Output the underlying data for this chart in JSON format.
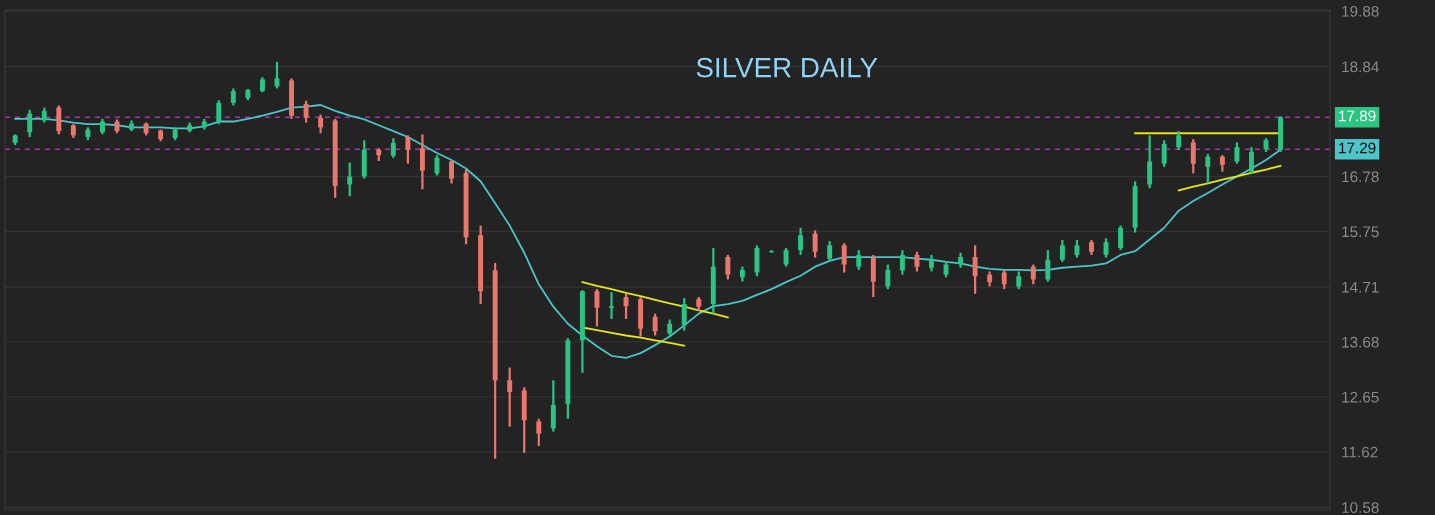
{
  "chart_data": {
    "type": "candlestick",
    "title": "SILVER DAILY",
    "categories": [
      null,
      null,
      null,
      null,
      null,
      null,
      null,
      null,
      null,
      null,
      null,
      null,
      null,
      null,
      null,
      null,
      null,
      null,
      null,
      null,
      null,
      null,
      null,
      null,
      null,
      null,
      null,
      null,
      null,
      null,
      null,
      null,
      null,
      null,
      null,
      null,
      null,
      null,
      null,
      null,
      null,
      null,
      null,
      null,
      null,
      null,
      null,
      null,
      null,
      null,
      null,
      null,
      null,
      null,
      null,
      null,
      null,
      null,
      null,
      null,
      null,
      null,
      null,
      null,
      null,
      null,
      null,
      null,
      null,
      null,
      null,
      null,
      null,
      null,
      null,
      null,
      null,
      null,
      null,
      null,
      null,
      null,
      null,
      null,
      null,
      null,
      null,
      null
    ],
    "ohlc": [
      [
        17.41,
        17.57,
        17.37,
        17.55
      ],
      [
        17.61,
        18.03,
        17.52,
        17.96
      ],
      [
        17.83,
        18.07,
        17.79,
        18.01
      ],
      [
        18.07,
        18.11,
        17.57,
        17.63
      ],
      [
        17.74,
        17.76,
        17.5,
        17.55
      ],
      [
        17.52,
        17.7,
        17.46,
        17.66
      ],
      [
        17.61,
        17.86,
        17.57,
        17.81
      ],
      [
        17.81,
        17.85,
        17.59,
        17.63
      ],
      [
        17.66,
        17.83,
        17.63,
        17.77
      ],
      [
        17.77,
        17.79,
        17.55,
        17.59
      ],
      [
        17.64,
        17.66,
        17.44,
        17.48
      ],
      [
        17.5,
        17.7,
        17.46,
        17.66
      ],
      [
        17.64,
        17.79,
        17.61,
        17.74
      ],
      [
        17.7,
        17.86,
        17.66,
        17.81
      ],
      [
        17.81,
        18.21,
        17.76,
        18.16
      ],
      [
        18.16,
        18.43,
        18.11,
        18.38
      ],
      [
        18.25,
        18.42,
        18.21,
        18.4
      ],
      [
        18.38,
        18.64,
        18.36,
        18.6
      ],
      [
        18.47,
        18.93,
        18.43,
        18.62
      ],
      [
        18.58,
        18.62,
        17.86,
        17.92
      ],
      [
        18.14,
        18.2,
        17.79,
        17.88
      ],
      [
        17.88,
        17.94,
        17.59,
        17.7
      ],
      [
        17.83,
        17.86,
        16.38,
        16.6
      ],
      [
        16.63,
        17.04,
        16.41,
        16.78
      ],
      [
        16.78,
        17.46,
        16.74,
        17.28
      ],
      [
        17.28,
        17.31,
        17.07,
        17.18
      ],
      [
        17.17,
        17.5,
        17.13,
        17.41
      ],
      [
        17.52,
        17.55,
        17.02,
        17.28
      ],
      [
        17.31,
        17.57,
        16.54,
        16.89
      ],
      [
        16.84,
        17.18,
        16.8,
        17.13
      ],
      [
        17.06,
        17.09,
        16.65,
        16.74
      ],
      [
        16.85,
        16.91,
        15.51,
        15.64
      ],
      [
        15.68,
        15.86,
        14.39,
        14.63
      ],
      [
        15.02,
        15.16,
        11.49,
        12.96
      ],
      [
        12.96,
        13.2,
        12.09,
        12.74
      ],
      [
        12.77,
        12.83,
        11.6,
        12.21
      ],
      [
        12.19,
        12.24,
        11.73,
        11.96
      ],
      [
        12.06,
        12.96,
        12.0,
        12.5
      ],
      [
        12.52,
        13.75,
        12.24,
        13.71
      ],
      [
        13.71,
        14.65,
        13.1,
        14.63
      ],
      [
        14.63,
        14.67,
        13.97,
        14.32
      ],
      [
        14.32,
        14.61,
        14.11,
        14.35
      ],
      [
        14.52,
        14.58,
        14.11,
        14.35
      ],
      [
        14.48,
        14.52,
        13.78,
        13.93
      ],
      [
        14.15,
        14.21,
        13.8,
        13.88
      ],
      [
        13.84,
        14.1,
        13.8,
        14.02
      ],
      [
        13.99,
        14.5,
        13.89,
        14.39
      ],
      [
        14.48,
        14.52,
        14.26,
        14.34
      ],
      [
        14.39,
        15.44,
        14.21,
        15.09
      ],
      [
        15.27,
        15.31,
        14.85,
        14.94
      ],
      [
        14.89,
        15.09,
        14.81,
        15.03
      ],
      [
        14.98,
        15.49,
        14.91,
        15.44
      ],
      [
        15.36,
        15.4,
        15.35,
        15.38
      ],
      [
        15.13,
        15.44,
        15.09,
        15.4
      ],
      [
        15.4,
        15.82,
        15.31,
        15.68
      ],
      [
        15.71,
        15.77,
        15.26,
        15.37
      ],
      [
        15.24,
        15.57,
        15.2,
        15.49
      ],
      [
        15.49,
        15.53,
        14.98,
        15.13
      ],
      [
        15.09,
        15.4,
        15.03,
        15.31
      ],
      [
        15.26,
        15.31,
        14.52,
        14.81
      ],
      [
        14.72,
        15.13,
        14.67,
        15.03
      ],
      [
        15.02,
        15.4,
        14.94,
        15.31
      ],
      [
        15.31,
        15.37,
        15.0,
        15.09
      ],
      [
        15.07,
        15.31,
        15.0,
        15.22
      ],
      [
        14.94,
        15.18,
        14.89,
        15.13
      ],
      [
        15.13,
        15.35,
        15.07,
        15.27
      ],
      [
        15.27,
        15.49,
        14.58,
        14.91
      ],
      [
        14.94,
        15.0,
        14.72,
        14.8
      ],
      [
        14.98,
        15.03,
        14.67,
        14.76
      ],
      [
        14.72,
        15.0,
        14.67,
        14.91
      ],
      [
        15.09,
        15.13,
        14.76,
        14.85
      ],
      [
        14.85,
        15.4,
        14.81,
        15.22
      ],
      [
        15.22,
        15.59,
        15.18,
        15.49
      ],
      [
        15.31,
        15.59,
        15.26,
        15.49
      ],
      [
        15.55,
        15.59,
        15.31,
        15.37
      ],
      [
        15.31,
        15.62,
        15.26,
        15.55
      ],
      [
        15.44,
        15.86,
        15.4,
        15.82
      ],
      [
        15.82,
        16.69,
        15.73,
        16.6
      ],
      [
        16.63,
        17.55,
        16.56,
        17.06
      ],
      [
        17.02,
        17.46,
        16.96,
        17.39
      ],
      [
        17.33,
        17.63,
        17.28,
        17.55
      ],
      [
        17.42,
        17.48,
        16.84,
        17.02
      ],
      [
        16.96,
        17.2,
        16.65,
        17.15
      ],
      [
        17.15,
        17.18,
        16.87,
        17.0
      ],
      [
        17.06,
        17.42,
        17.02,
        17.33
      ],
      [
        16.87,
        17.33,
        16.84,
        17.24
      ],
      [
        17.29,
        17.5,
        17.24,
        17.46
      ],
      [
        17.28,
        17.91,
        17.24,
        17.89
      ]
    ],
    "colors": [
      "#2bc483",
      "#2bc483",
      "#2bc483",
      "#e9776c",
      "#e9776c",
      "#2bc483",
      "#2bc483",
      "#e9776c",
      "#2bc483",
      "#e9776c",
      "#e9776c",
      "#2bc483",
      "#2bc483",
      "#2bc483",
      "#2bc483",
      "#2bc483",
      "#2bc483",
      "#2bc483",
      "#2bc483",
      "#e9776c",
      "#e9776c",
      "#e9776c",
      "#e9776c",
      "#2bc483",
      "#2bc483",
      "#e9776c",
      "#2bc483",
      "#e9776c",
      "#e9776c",
      "#2bc483",
      "#e9776c",
      "#e9776c",
      "#e9776c",
      "#e9776c",
      "#e9776c",
      "#e9776c",
      "#e9776c",
      "#2bc483",
      "#2bc483",
      "#2bc483",
      "#e9776c",
      "#2bc483",
      "#e9776c",
      "#e9776c",
      "#e9776c",
      "#2bc483",
      "#2bc483",
      "#e9776c",
      "#2bc483",
      "#e9776c",
      "#2bc483",
      "#2bc483",
      "#2bc483",
      "#2bc483",
      "#2bc483",
      "#e9776c",
      "#2bc483",
      "#e9776c",
      "#2bc483",
      "#e9776c",
      "#2bc483",
      "#2bc483",
      "#e9776c",
      "#2bc483",
      "#2bc483",
      "#2bc483",
      "#e9776c",
      "#e9776c",
      "#e9776c",
      "#2bc483",
      "#e9776c",
      "#2bc483",
      "#2bc483",
      "#2bc483",
      "#e9776c",
      "#2bc483",
      "#2bc483",
      "#2bc483",
      "#2bc483",
      "#2bc483",
      "#2bc483",
      "#e9776c",
      "#2bc483",
      "#e9776c",
      "#2bc483",
      "#2bc483",
      "#2bc483",
      "#2bc483"
    ],
    "series": [
      {
        "type": "line",
        "color": "#4cc4c8",
        "values": [
          17.86,
          17.86,
          17.86,
          17.83,
          17.79,
          17.76,
          17.76,
          17.74,
          17.7,
          17.7,
          17.7,
          17.68,
          17.68,
          17.72,
          17.81,
          17.81,
          17.86,
          17.92,
          17.99,
          18.07,
          18.09,
          18.12,
          18.01,
          17.92,
          17.85,
          17.74,
          17.63,
          17.52,
          17.37,
          17.22,
          17.09,
          16.93,
          16.69,
          16.28,
          15.86,
          15.35,
          14.76,
          14.34,
          14.02,
          13.8,
          13.6,
          13.42,
          13.38,
          13.47,
          13.62,
          13.78,
          13.99,
          14.21,
          14.35,
          14.39,
          14.45,
          14.56,
          14.67,
          14.8,
          14.92,
          15.09,
          15.2,
          15.27,
          15.27,
          15.27,
          15.27,
          15.27,
          15.24,
          15.22,
          15.18,
          15.15,
          15.09,
          15.05,
          15.03,
          15.03,
          15.02,
          15.03,
          15.07,
          15.09,
          15.11,
          15.15,
          15.31,
          15.38,
          15.6,
          15.82,
          16.14,
          16.32,
          16.47,
          16.63,
          16.78,
          16.93,
          17.09,
          17.28
        ]
      },
      {
        "type": "line",
        "color": "#e6e619",
        "values": [
          null,
          null,
          null,
          null,
          null,
          null,
          null,
          null,
          null,
          null,
          null,
          null,
          null,
          null,
          null,
          null,
          null,
          null,
          null,
          null,
          null,
          null,
          null,
          null,
          null,
          null,
          null,
          null,
          null,
          null,
          null,
          null,
          null,
          null,
          null,
          null,
          null,
          null,
          null,
          14.8,
          14.73,
          14.67,
          14.6,
          14.54,
          14.47,
          14.4,
          14.34,
          14.27,
          14.21,
          14.14,
          null,
          null,
          null,
          null,
          null,
          null,
          null,
          null,
          null,
          null,
          null,
          null,
          null,
          null,
          null,
          null,
          null,
          null,
          null,
          null,
          null,
          null,
          null,
          null,
          null,
          null,
          null,
          null,
          null,
          null,
          null,
          null,
          null,
          null,
          null,
          null,
          null,
          null
        ]
      },
      {
        "type": "line",
        "color": "#e6e619",
        "values": [
          null,
          null,
          null,
          null,
          null,
          null,
          null,
          null,
          null,
          null,
          null,
          null,
          null,
          null,
          null,
          null,
          null,
          null,
          null,
          null,
          null,
          null,
          null,
          null,
          null,
          null,
          null,
          null,
          null,
          null,
          null,
          null,
          null,
          null,
          null,
          null,
          null,
          null,
          null,
          13.95,
          13.9,
          13.85,
          13.8,
          13.76,
          13.71,
          13.66,
          13.61,
          null,
          null,
          null,
          null,
          null,
          null,
          null,
          null,
          null,
          null,
          null,
          null,
          null,
          null,
          null,
          null,
          null,
          null,
          null,
          null,
          null,
          null,
          null,
          null,
          null,
          null,
          null,
          null,
          null,
          null,
          null,
          null,
          null,
          null,
          null,
          null,
          null,
          null,
          null,
          null,
          null
        ]
      },
      {
        "type": "line",
        "color": "#e6e619",
        "values": [
          null,
          null,
          null,
          null,
          null,
          null,
          null,
          null,
          null,
          null,
          null,
          null,
          null,
          null,
          null,
          null,
          null,
          null,
          null,
          null,
          null,
          null,
          null,
          null,
          null,
          null,
          null,
          null,
          null,
          null,
          null,
          null,
          null,
          null,
          null,
          null,
          null,
          null,
          null,
          null,
          null,
          null,
          null,
          null,
          null,
          null,
          null,
          null,
          null,
          null,
          null,
          null,
          null,
          null,
          null,
          null,
          null,
          null,
          null,
          null,
          null,
          null,
          null,
          null,
          null,
          null,
          null,
          null,
          null,
          null,
          null,
          null,
          null,
          null,
          null,
          null,
          null,
          17.59,
          17.59,
          17.59,
          17.59,
          17.59,
          17.59,
          17.59,
          17.59,
          17.59,
          17.59,
          17.59
        ]
      },
      {
        "type": "line",
        "color": "#e6e619",
        "values": [
          null,
          null,
          null,
          null,
          null,
          null,
          null,
          null,
          null,
          null,
          null,
          null,
          null,
          null,
          null,
          null,
          null,
          null,
          null,
          null,
          null,
          null,
          null,
          null,
          null,
          null,
          null,
          null,
          null,
          null,
          null,
          null,
          null,
          null,
          null,
          null,
          null,
          null,
          null,
          null,
          null,
          null,
          null,
          null,
          null,
          null,
          null,
          null,
          null,
          null,
          null,
          null,
          null,
          null,
          null,
          null,
          null,
          null,
          null,
          null,
          null,
          null,
          null,
          null,
          null,
          null,
          null,
          null,
          null,
          null,
          null,
          null,
          null,
          null,
          null,
          null,
          null,
          null,
          null,
          null,
          16.52,
          16.59,
          16.65,
          16.72,
          16.78,
          16.85,
          16.91,
          16.98
        ]
      }
    ],
    "ref_lines": [
      {
        "axis": "y",
        "value": 17.89,
        "label": "17.89",
        "color": "#b52bb8",
        "line_style": "dashed"
      },
      {
        "axis": "y",
        "value": 17.29,
        "label": "17.29",
        "color": "#b52bb8",
        "line_style": "dashed"
      }
    ],
    "ylim": [
      10.53,
      19.9
    ],
    "yticks": [
      10.58,
      11.62,
      12.65,
      13.68,
      14.71,
      15.75,
      16.78,
      18.84,
      19.88
    ],
    "grid": "y",
    "tick_labels": "y"
  }
}
